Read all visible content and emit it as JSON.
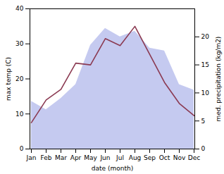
{
  "chart_data": {
    "type": "line",
    "xlabel": "date (month)",
    "ylabel": "max temp (C)",
    "y2label": "med. precipitation (kg/m2)",
    "categories": [
      "Jan",
      "Feb",
      "Mar",
      "Apr",
      "May",
      "Jun",
      "Jul",
      "Aug",
      "Sep",
      "Oct",
      "Nov",
      "Dec"
    ],
    "series": [
      {
        "type": "area",
        "axis": "y2",
        "color": "#c5caf0",
        "values": [
          8.5,
          7.0,
          9.0,
          11.5,
          18.5,
          21.5,
          20.0,
          21.0,
          18.0,
          17.5,
          11.5,
          10.5
        ]
      },
      {
        "type": "line",
        "color": "#8b3a52",
        "values": [
          7.5,
          14.0,
          17.0,
          24.5,
          24.0,
          31.5,
          29.5,
          35.0,
          27.0,
          19.0,
          13.0,
          9.5
        ]
      }
    ],
    "ylim": [
      0,
      40
    ],
    "yticks": [
      0,
      10,
      20,
      30,
      40
    ],
    "y2lim": [
      0,
      25
    ],
    "y2ticks": [
      0,
      5,
      10,
      15,
      20
    ]
  }
}
